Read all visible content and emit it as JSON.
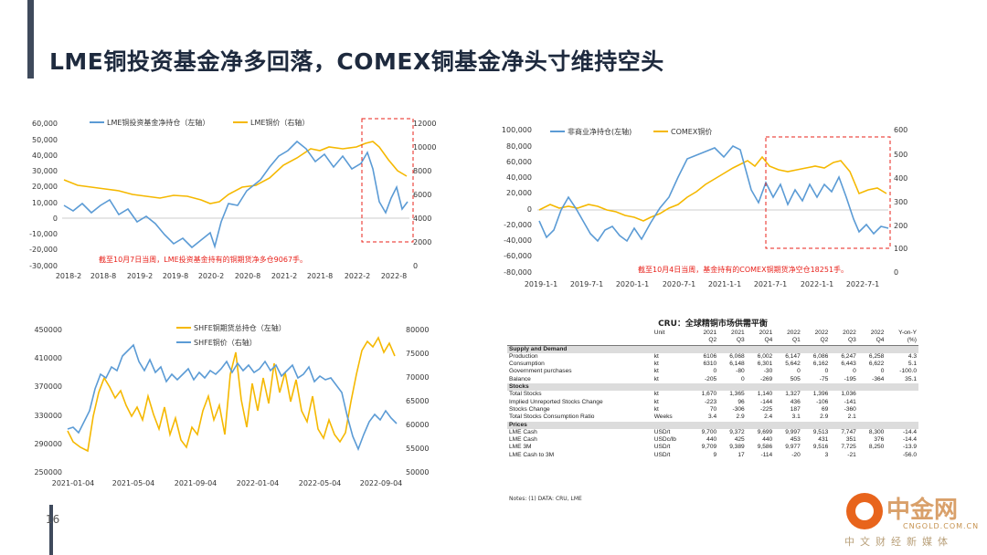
{
  "title": "LME铜投资基金净多回落，COMEX铜基金净头寸维持空头",
  "page_number": "16",
  "colors": {
    "blue": "#5b9bd5",
    "gold": "#f5b800",
    "red": "#e8201a"
  },
  "watermark": {
    "name": "中金网",
    "domain": "CNGOLD.COM.CN",
    "sub": "中文财经新媒体"
  },
  "chart1": {
    "legend": [
      "LME铜投资基金净持仓（左轴）",
      "LME铜价（右轴）"
    ],
    "left_ticks": [
      "60,000",
      "50,000",
      "40,000",
      "30,000",
      "20,000",
      "10,000",
      "0",
      "-10,000",
      "-20,000",
      "-30,000"
    ],
    "right_ticks": [
      "12000",
      "10000",
      "8000",
      "6000",
      "4000",
      "2000",
      "0"
    ],
    "x_ticks": [
      "2018-2",
      "2018-8",
      "2019-2",
      "2019-8",
      "2020-2",
      "2020-8",
      "2021-2",
      "2021-8",
      "2022-2",
      "2022-8"
    ],
    "annotation": "截至10月7日当周，LME投资基金持有的铜期货净多仓9067手。"
  },
  "chart2": {
    "legend": [
      "非商业净持仓(左轴)",
      "COMEX铜价"
    ],
    "left_ticks": [
      "100,000",
      "80,000",
      "60,000",
      "40,000",
      "20,000",
      "0",
      "-20,000",
      "-40,000",
      "-60,000",
      "-80,000"
    ],
    "right_ticks": [
      "600",
      "500",
      "400",
      "300",
      "200",
      "100",
      "0"
    ],
    "x_ticks": [
      "2019-1-1",
      "2019-7-1",
      "2020-1-1",
      "2020-7-1",
      "2021-1-1",
      "2021-7-1",
      "2022-1-1",
      "2022-7-1"
    ],
    "annotation": "截至10月4日当周，基金持有的COMEX铜期货净空仓18251手。"
  },
  "chart3": {
    "legend": [
      "SHFE铜期货总持仓（左轴）",
      "SHFE铜价（右轴）"
    ],
    "left_ticks": [
      "450000",
      "410000",
      "370000",
      "330000",
      "290000",
      "250000"
    ],
    "right_ticks": [
      "80000",
      "75000",
      "70000",
      "65000",
      "60000",
      "55000",
      "50000"
    ],
    "x_ticks": [
      "2021-01-04",
      "2021-05-04",
      "2021-09-04",
      "2022-01-04",
      "2022-05-04",
      "2022-09-04"
    ]
  },
  "cru": {
    "title": "CRU：全球精铜市场供需平衡",
    "unit_header": "Unit",
    "columns": [
      [
        "2021",
        "Q2"
      ],
      [
        "2021",
        "Q3"
      ],
      [
        "2021",
        "Q4"
      ],
      [
        "2022",
        "Q1"
      ],
      [
        "2022",
        "Q2"
      ],
      [
        "2022",
        "Q3"
      ],
      [
        "2022",
        "Q4"
      ],
      [
        "Y-on-Y",
        "(%)"
      ]
    ],
    "rows": [
      {
        "section": "Supply and Demand"
      },
      {
        "label": "Production",
        "unit": "kt",
        "values": [
          "6106",
          "6,068",
          "6,002",
          "6,147",
          "6,086",
          "6,247",
          "6,258",
          "4.3"
        ]
      },
      {
        "label": "Consumption",
        "unit": "kt",
        "values": [
          "6310",
          "6,148",
          "6,301",
          "5,642",
          "6,162",
          "6,443",
          "6,622",
          "5.1"
        ]
      },
      {
        "label": "Government purchases",
        "unit": "kt",
        "values": [
          "0",
          "-80",
          "-30",
          "0",
          "0",
          "0",
          "0",
          "-100.0"
        ]
      },
      {
        "label": "Balance",
        "unit": "kt",
        "values": [
          "-205",
          "0",
          "-269",
          "505",
          "-75",
          "-195",
          "-364",
          "35.1"
        ]
      },
      {
        "section": "Stocks"
      },
      {
        "label": "Total Stocks",
        "unit": "kt",
        "values": [
          "1,670",
          "1,365",
          "1,140",
          "1,327",
          "1,396",
          "1,036",
          "",
          ""
        ]
      },
      {
        "label": "Implied Unreported Stocks Change",
        "unit": "kt",
        "values": [
          "-223",
          "96",
          "-144",
          "436",
          "-106",
          "-141",
          "",
          ""
        ]
      },
      {
        "label": "Stocks Change",
        "unit": "kt",
        "values": [
          "70",
          "-306",
          "-225",
          "187",
          "69",
          "-360",
          "",
          ""
        ]
      },
      {
        "label": "Total Stocks Consumption Ratio",
        "unit": "Weeks",
        "values": [
          "3.4",
          "2.9",
          "2.4",
          "3.1",
          "2.9",
          "2.1",
          "",
          ""
        ]
      },
      {
        "section": "Prices"
      },
      {
        "label": "LME Cash",
        "unit": "USD/t",
        "values": [
          "9,700",
          "9,372",
          "9,699",
          "9,997",
          "9,513",
          "7,747",
          "8,300",
          "-14.4"
        ]
      },
      {
        "label": "LME Cash",
        "unit": "USDc/lb",
        "values": [
          "440",
          "425",
          "440",
          "453",
          "431",
          "351",
          "376",
          "-14.4"
        ]
      },
      {
        "label": "LME 3M",
        "unit": "USD/t",
        "values": [
          "9,709",
          "9,389",
          "9,586",
          "9,977",
          "9,516",
          "7,725",
          "8,250",
          "-13.9"
        ]
      },
      {
        "label": "LME Cash to 3M",
        "unit": "USD/t",
        "values": [
          "9",
          "17",
          "-114",
          "-20",
          "3",
          "-21",
          "",
          "-56.0"
        ]
      }
    ],
    "notes": "Notes: (1) DATA: CRU, LME"
  }
}
